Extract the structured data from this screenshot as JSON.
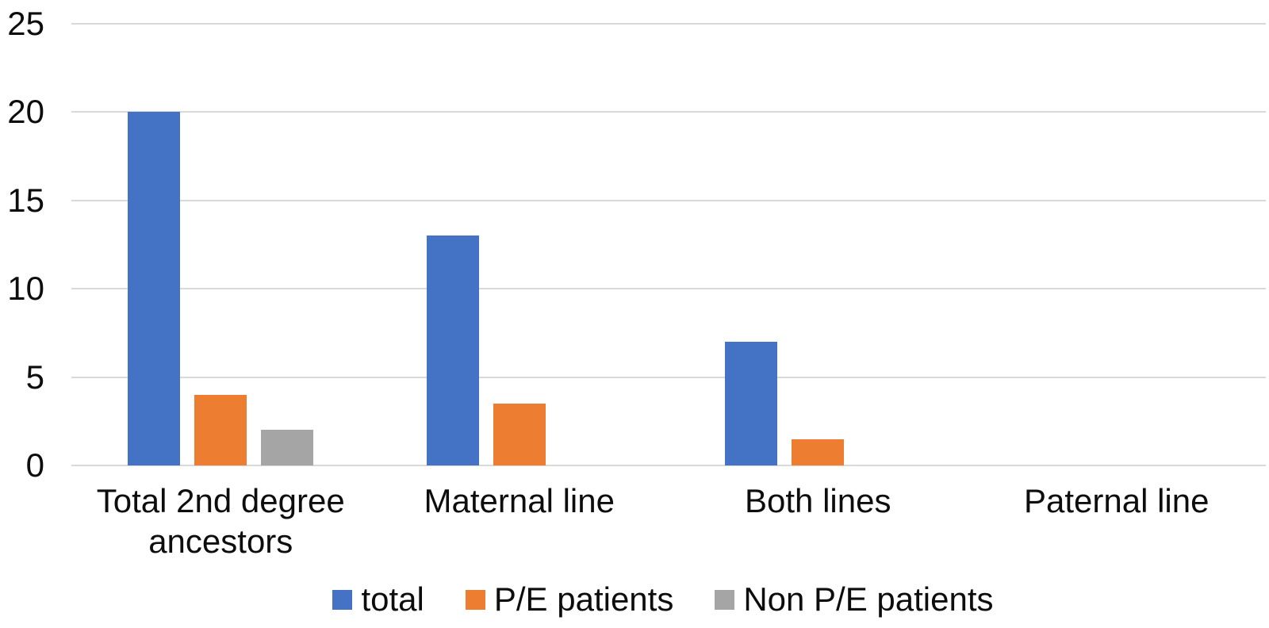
{
  "chart_data": {
    "type": "bar",
    "categories": [
      "Total 2nd degree ancestors",
      "Maternal line",
      "Both lines",
      "Paternal line"
    ],
    "series": [
      {
        "name": "total",
        "color": "#4472C4",
        "values": [
          20,
          13,
          7,
          0
        ]
      },
      {
        "name": "P/E patients",
        "color": "#ED7D31",
        "values": [
          4,
          3.5,
          1.5,
          0
        ]
      },
      {
        "name": "Non P/E patients",
        "color": "#A5A5A5",
        "values": [
          2,
          0,
          0,
          0
        ]
      }
    ],
    "title": "",
    "xlabel": "",
    "ylabel": "",
    "ylim": [
      0,
      25
    ],
    "y_ticks": [
      0,
      5,
      10,
      15,
      20,
      25
    ],
    "grid": true,
    "legend_position": "bottom",
    "colors": {
      "gridline": "#D9D9D9",
      "axis_line": "#D9D9D9",
      "text": "#0D0D0D",
      "background": "#FFFFFF"
    }
  }
}
